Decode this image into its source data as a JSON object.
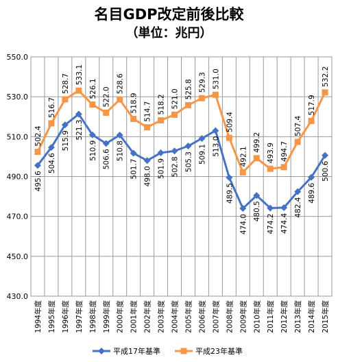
{
  "chart_data": {
    "type": "line",
    "title": "名目GDP改定前後比較",
    "subtitle": "（単位：兆円）",
    "categories": [
      "1994年度",
      "1995年度",
      "1996年度",
      "1997年度",
      "1998年度",
      "1999年度",
      "2000年度",
      "2001年度",
      "2002年度",
      "2003年度",
      "2004年度",
      "2005年度",
      "2006年度",
      "2007年度",
      "2008年度",
      "2009年度",
      "2010年度",
      "2011年度",
      "2012年度",
      "2013年度",
      "2014年度",
      "2015年度"
    ],
    "series": [
      {
        "name": "平成17年基準",
        "color": "#4472c4",
        "marker": "diamond",
        "values": [
          495.6,
          504.6,
          515.9,
          521.3,
          510.9,
          506.6,
          510.8,
          501.7,
          498.0,
          501.9,
          502.8,
          505.3,
          509.1,
          513.0,
          489.5,
          474.0,
          480.5,
          474.2,
          474.4,
          482.4,
          489.6,
          500.6
        ],
        "labels": [
          "495.6",
          "504.6",
          "515.9",
          "521.3",
          "510.9",
          "506.6",
          "510.8",
          "501.7",
          "498.0",
          "501.9",
          "502.8",
          "505.3",
          "509.1",
          "513.0",
          "489.5",
          "474.0",
          "480.5",
          "474.2",
          "474.4",
          "482.4",
          "489.6",
          "500.6"
        ]
      },
      {
        "name": "平成23年基準",
        "color": "#f79646",
        "marker": "square",
        "values": [
          502.4,
          516.7,
          528.7,
          533.1,
          526.1,
          522.0,
          528.6,
          518.9,
          514.7,
          518.2,
          521.0,
          525.8,
          529.3,
          531.0,
          509.4,
          492.1,
          499.2,
          493.9,
          494.7,
          507.4,
          517.9,
          532.2
        ],
        "labels": [
          "502.4",
          "516.7",
          "528.7",
          "533.1",
          "526.1",
          "522.0",
          "528.6",
          "518.9",
          "514.7",
          "518.2",
          "521.0",
          "525.8",
          "529.3",
          "531.0",
          "509.4",
          "492.1",
          "499.2",
          "493.9",
          "494.7",
          "507.4",
          "517.9",
          "532.2"
        ]
      }
    ],
    "ylim": [
      430,
      550
    ],
    "yticks": [
      "550.0",
      "530.0",
      "510.0",
      "490.0",
      "470.0",
      "450.0",
      "430.0"
    ],
    "grid": true,
    "legend": "bottom"
  }
}
